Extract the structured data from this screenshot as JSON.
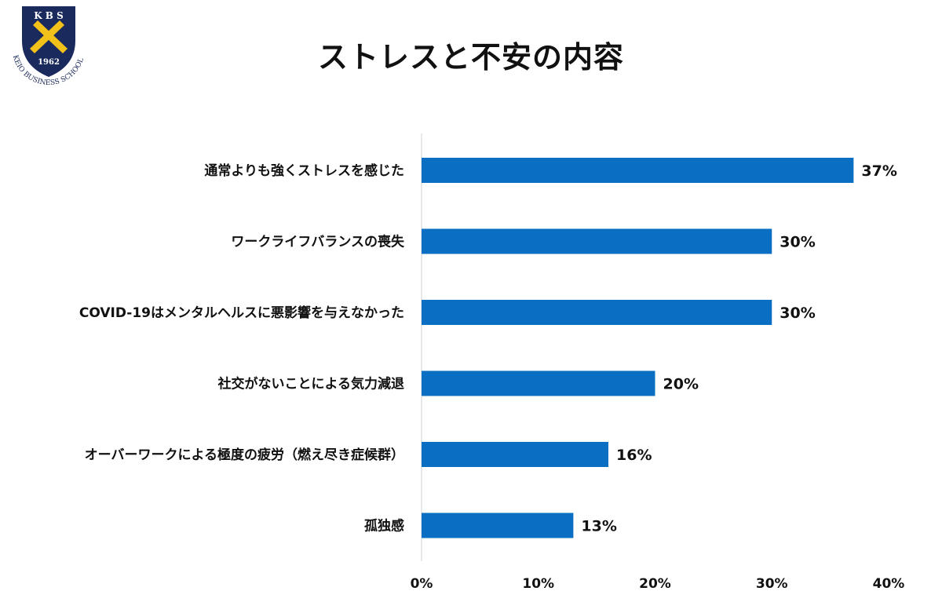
{
  "logo": {
    "top_text": "K B S",
    "year": "1962",
    "arc_text": "KEIO BUSINESS SCHOOL",
    "colors": {
      "shield": "#1b2a5c",
      "emblem": "#f2c21b"
    }
  },
  "title": "ストレスと不安の内容",
  "chart_data": {
    "type": "bar",
    "orientation": "horizontal",
    "categories": [
      "通常よりも強くストレスを感じた",
      "ワークライフバランスの喪失",
      "COVID-19はメンタルヘルスに悪影響を与えなかった",
      "社交がないことによる気力減退",
      "オーバーワークによる極度の疲労（燃え尽き症候群）",
      "孤独感"
    ],
    "values": [
      37,
      30,
      30,
      20,
      16,
      13
    ],
    "value_labels": [
      "37%",
      "30%",
      "30%",
      "20%",
      "16%",
      "13%"
    ],
    "xlim": [
      0,
      40
    ],
    "ticks": [
      0,
      10,
      20,
      30,
      40
    ],
    "tick_labels": [
      "0%",
      "10%",
      "20%",
      "30%",
      "40%"
    ],
    "bar_color": "#0a6fc2",
    "grid": false,
    "legend": "none"
  }
}
